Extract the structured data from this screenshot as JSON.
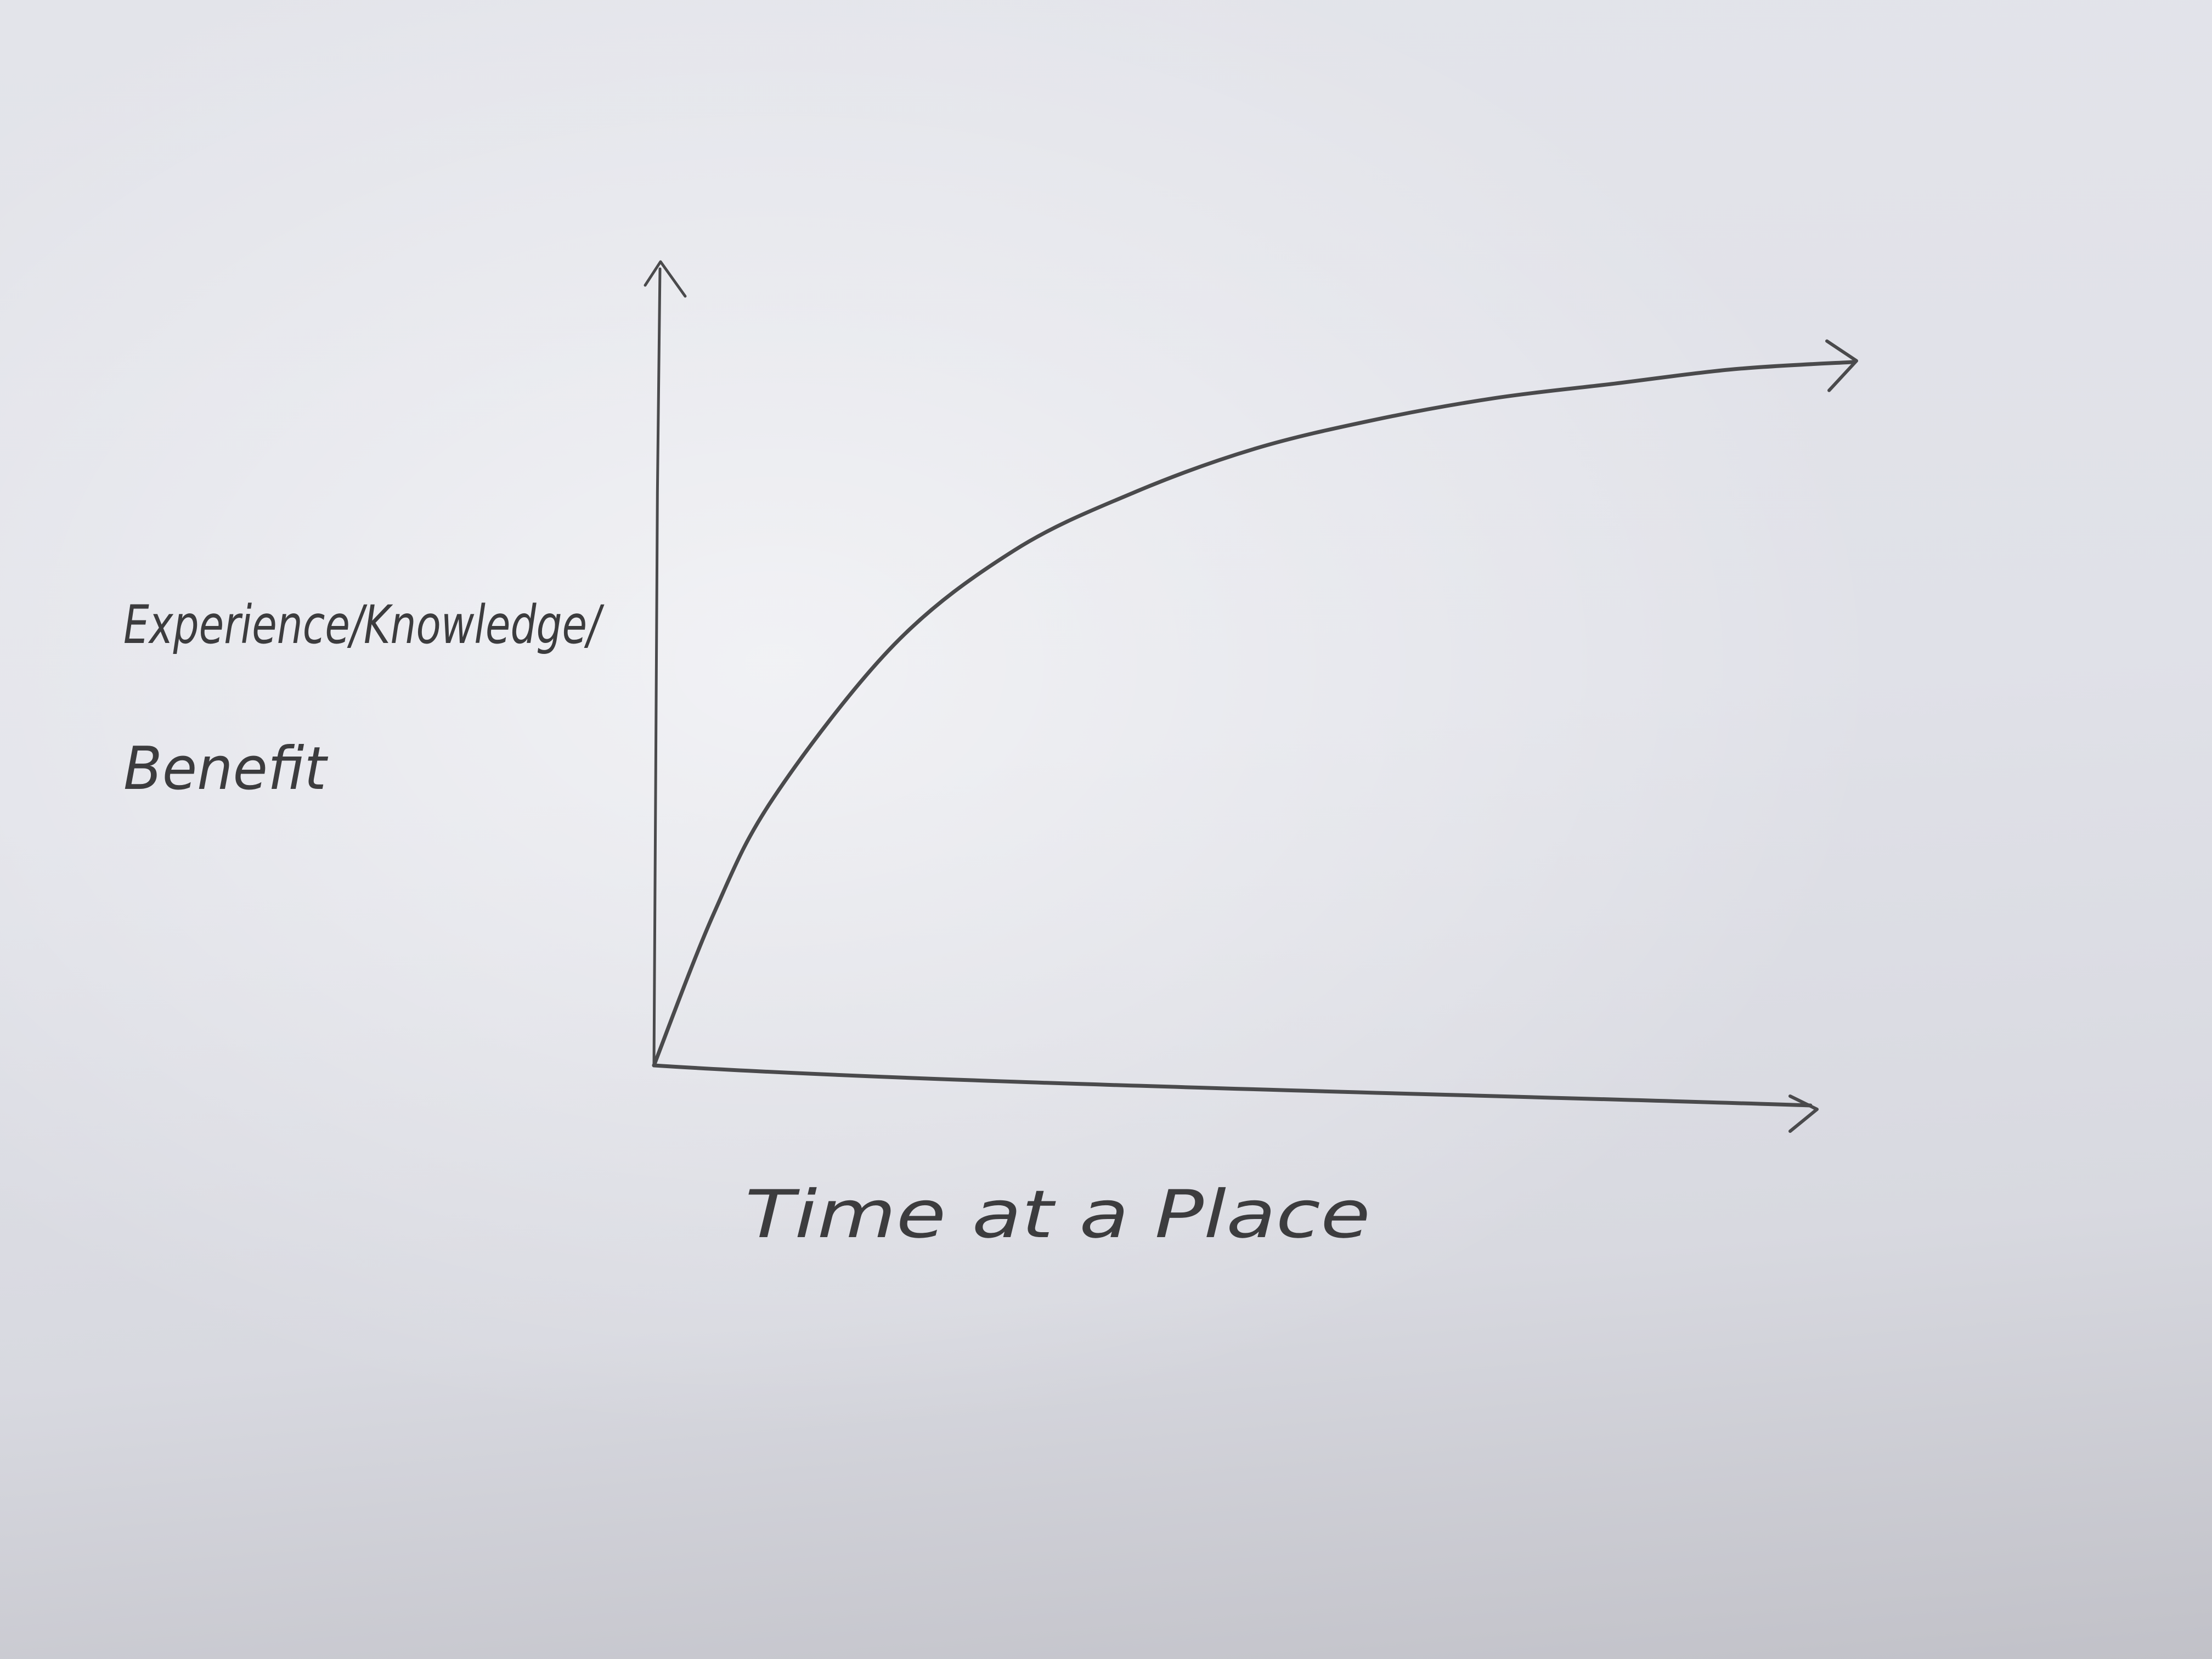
{
  "chart_data": {
    "type": "line",
    "title": "",
    "xlabel": "Time at a Place",
    "ylabel": "Experience/Knowledge/Benefit",
    "ylabel_lines": [
      "Experience/Knowledge/",
      "Benefit"
    ],
    "tick_labels": [],
    "grid": false,
    "legend": "none",
    "shape": "concave increasing curve that rises steeply from the origin and flattens toward the right",
    "series": [
      {
        "x": [
          0,
          0.05,
          0.1,
          0.2,
          0.3,
          0.4,
          0.5,
          0.6,
          0.7,
          0.8,
          0.9,
          1.0
        ],
        "values": [
          0,
          0.21,
          0.37,
          0.58,
          0.71,
          0.79,
          0.85,
          0.89,
          0.92,
          0.94,
          0.96,
          0.97
        ]
      }
    ],
    "xlim": [
      0,
      1
    ],
    "ylim": [
      0,
      1.1
    ],
    "pencil_color": "#4a4a4c"
  }
}
